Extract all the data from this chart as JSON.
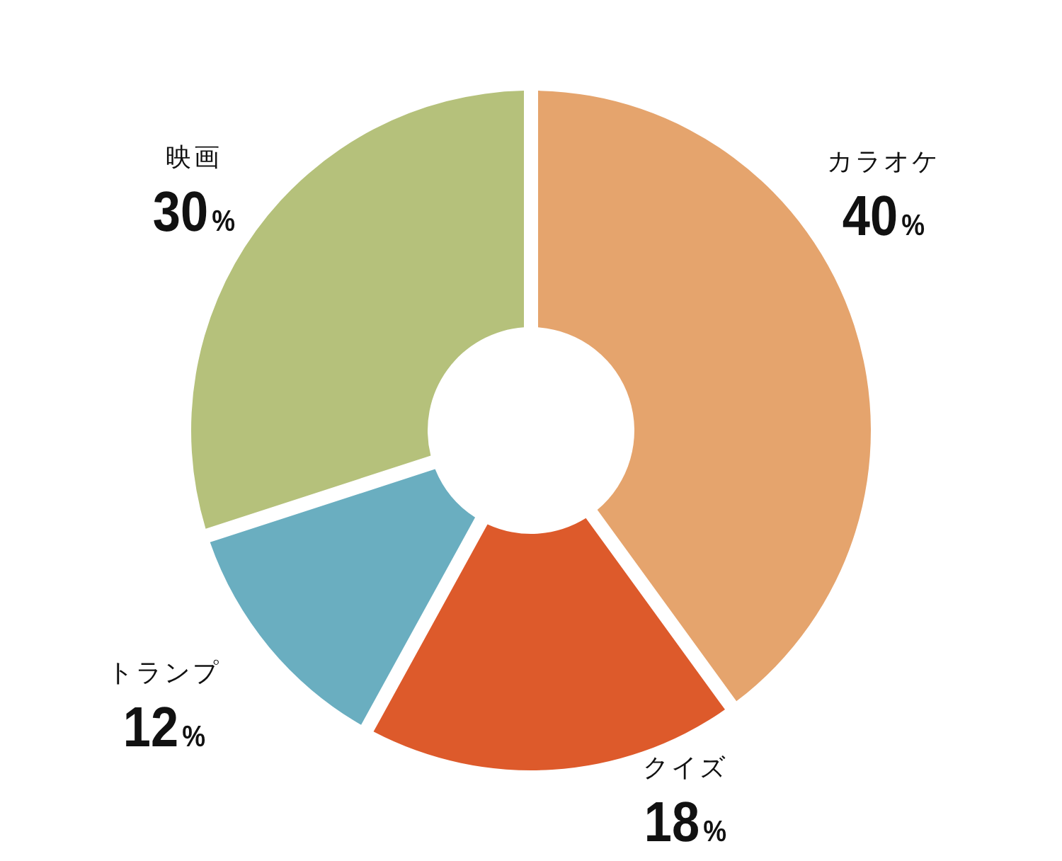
{
  "chart_data": {
    "type": "donut",
    "categories": [
      "カラオケ",
      "クイズ",
      "トランプ",
      "映画"
    ],
    "values": [
      40,
      18,
      12,
      30
    ],
    "colors": [
      "#e5a46d",
      "#dd5a2b",
      "#6aaec0",
      "#b5c17b"
    ],
    "value_labels": [
      "40%",
      "18%",
      "12%",
      "30%"
    ]
  }
}
